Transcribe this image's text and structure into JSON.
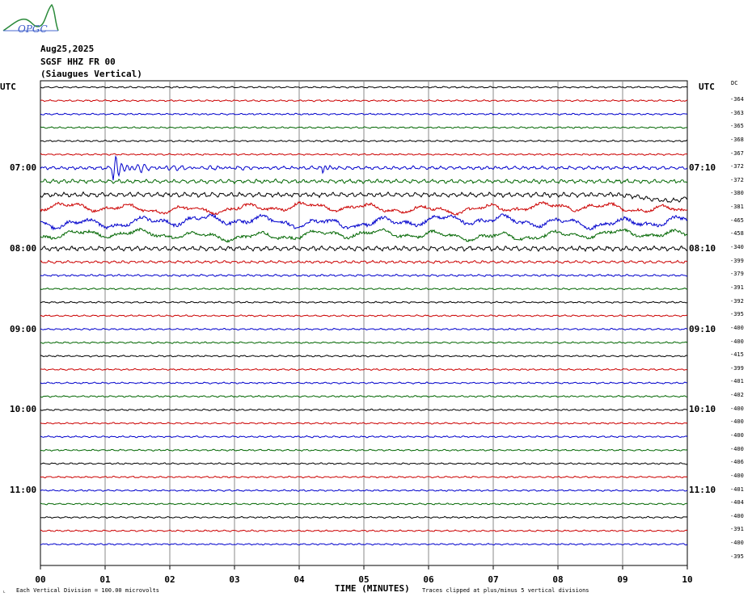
{
  "logo_text": "OPGC",
  "header": {
    "date": "Aug25,2025",
    "station": "SGSF HHZ FR 00",
    "location": "(Siaugues Vertical)"
  },
  "utc_left": "UTC",
  "utc_right": "UTC",
  "dc_header": "DC",
  "chart_data": {
    "type": "line",
    "xlabel": "TIME (MINUTES)",
    "x_ticks": [
      "00",
      "01",
      "02",
      "03",
      "04",
      "05",
      "06",
      "07",
      "08",
      "09",
      "10"
    ],
    "xlim": [
      0,
      10
    ],
    "grid": true,
    "left_time_labels": [
      {
        "row": 6,
        "text": "07:00"
      },
      {
        "row": 12,
        "text": "08:00"
      },
      {
        "row": 18,
        "text": "09:00"
      },
      {
        "row": 24,
        "text": "10:00"
      },
      {
        "row": 30,
        "text": "11:00"
      }
    ],
    "right_time_labels": [
      {
        "row": 6,
        "text": "07:10"
      },
      {
        "row": 12,
        "text": "08:10"
      },
      {
        "row": 18,
        "text": "09:10"
      },
      {
        "row": 24,
        "text": "10:10"
      },
      {
        "row": 30,
        "text": "11:10"
      }
    ],
    "dc_offsets": [
      "-364",
      "-363",
      "-365",
      "-368",
      "-367",
      "-372",
      "-372",
      "-380",
      "-381",
      "-465",
      "-458",
      "-340",
      "-399",
      "-379",
      "-391",
      "-392",
      "-395",
      "-400",
      "-400",
      "-415",
      "-399",
      "-401",
      "-402",
      "-400",
      "-400",
      "-400",
      "-400",
      "-406",
      "-400",
      "-401",
      "-404",
      "-400",
      "-391",
      "-400",
      "-395"
    ],
    "trace_colors": [
      "#000000",
      "#cc0000",
      "#0000cc",
      "#006600"
    ],
    "event": {
      "row": 6,
      "start_minute": 1.1,
      "peak_amplitude_divisions": 1.5,
      "secondary_minute": 4.35
    },
    "rows_amplitude_divisions": [
      0.12,
      0.12,
      0.12,
      0.12,
      0.12,
      0.12,
      0.25,
      0.3,
      0.35,
      0.7,
      0.85,
      0.7,
      0.35,
      0.2,
      0.15,
      0.12,
      0.12,
      0.12,
      0.12,
      0.12,
      0.12,
      0.12,
      0.12,
      0.12,
      0.12,
      0.12,
      0.12,
      0.12,
      0.12,
      0.12,
      0.12,
      0.12,
      0.12,
      0.12,
      0.12
    ]
  },
  "footer": {
    "scale": "Each Vertical Division =  100.00 microvolts",
    "clip": "Traces clipped at plus/minus 5 vertical divisions"
  }
}
